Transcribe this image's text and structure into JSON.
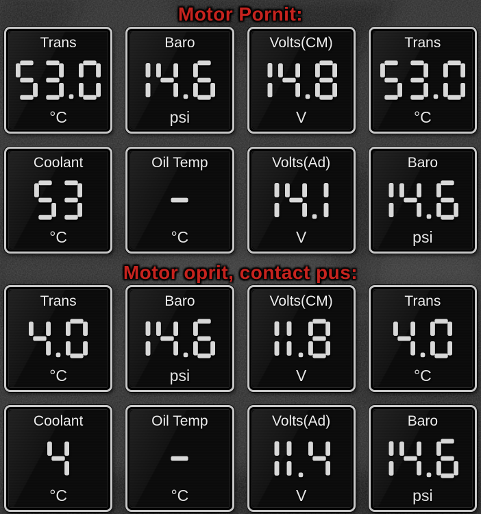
{
  "colors": {
    "title_red": "#c6231e",
    "digit": "#d8d8d8",
    "tile_border": "#c7c7c7",
    "tile_bg": "#0b0b0b",
    "page_bg": "#2c2c2c"
  },
  "sections": [
    {
      "title": "Motor Pornit:",
      "gauges": [
        {
          "label": "Trans",
          "value": "53.0",
          "unit": "°C"
        },
        {
          "label": "Baro",
          "value": "14.6",
          "unit": "psi"
        },
        {
          "label": "Volts(CM)",
          "value": "14.8",
          "unit": "V"
        },
        {
          "label": "Trans",
          "value": "53.0",
          "unit": "°C"
        },
        {
          "label": "Coolant",
          "value": "53",
          "unit": "°C"
        },
        {
          "label": "Oil Temp",
          "value": "-",
          "unit": "°C"
        },
        {
          "label": "Volts(Ad)",
          "value": "14.1",
          "unit": "V"
        },
        {
          "label": "Baro",
          "value": "14.6",
          "unit": "psi"
        }
      ]
    },
    {
      "title": "Motor oprit, contact pus:",
      "gauges": [
        {
          "label": "Trans",
          "value": "4.0",
          "unit": "°C"
        },
        {
          "label": "Baro",
          "value": "14.6",
          "unit": "psi"
        },
        {
          "label": "Volts(CM)",
          "value": "11.8",
          "unit": "V"
        },
        {
          "label": "Trans",
          "value": "4.0",
          "unit": "°C"
        },
        {
          "label": "Coolant",
          "value": "4",
          "unit": "°C"
        },
        {
          "label": "Oil Temp",
          "value": "-",
          "unit": "°C"
        },
        {
          "label": "Volts(Ad)",
          "value": "11.4",
          "unit": "V"
        },
        {
          "label": "Baro",
          "value": "14.6",
          "unit": "psi"
        }
      ]
    }
  ]
}
